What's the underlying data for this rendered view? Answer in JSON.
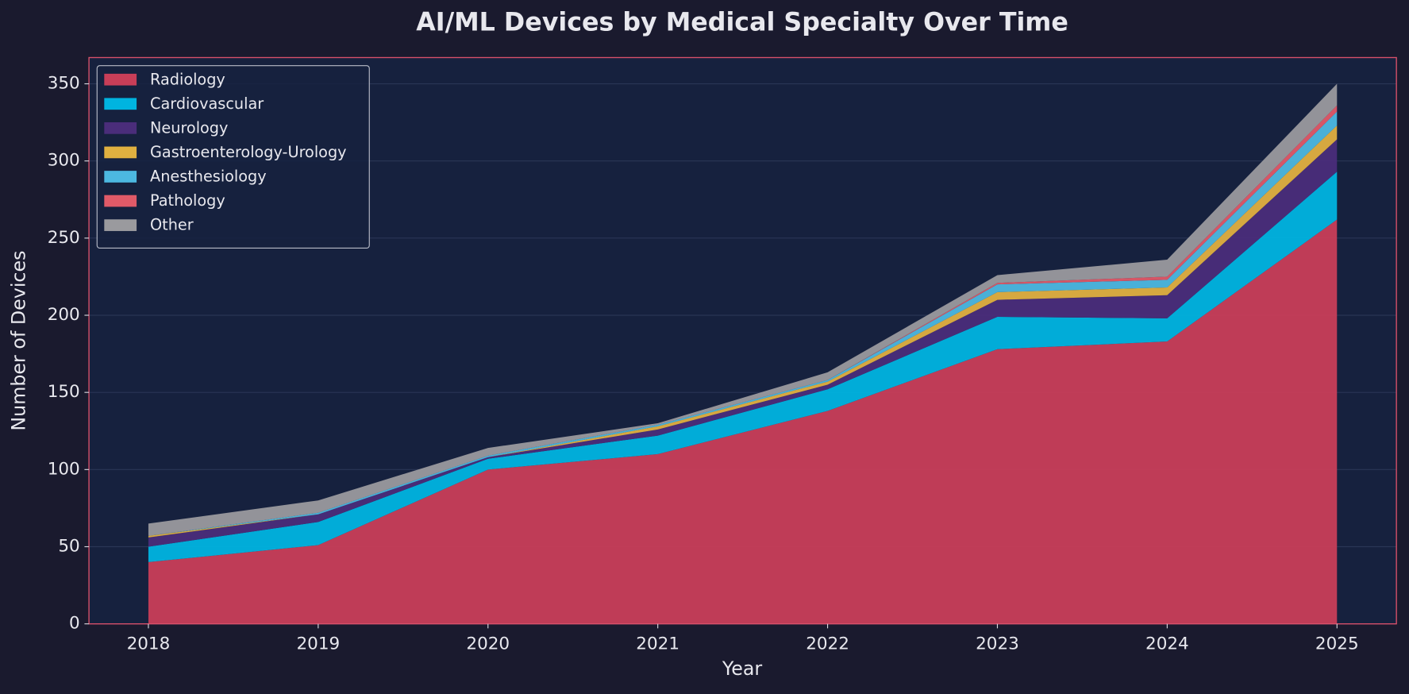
{
  "chart_data": {
    "type": "stackedarea",
    "title": "AI/ML Devices by Medical Specialty Over Time",
    "xlabel": "Year",
    "ylabel": "Number of Devices",
    "x": [
      2018,
      2019,
      2020,
      2021,
      2022,
      2023,
      2024,
      2025
    ],
    "series": [
      {
        "name": "Radiology",
        "color": "#c83e58",
        "values": [
          40,
          51,
          100,
          110,
          138,
          178,
          183,
          262
        ]
      },
      {
        "name": "Cardiovascular",
        "color": "#00b4e0",
        "values": [
          10,
          15,
          7,
          12,
          14,
          21,
          15,
          31
        ]
      },
      {
        "name": "Neurology",
        "color": "#4a2d7a",
        "values": [
          6,
          5,
          1,
          4,
          3,
          11,
          15,
          21
        ]
      },
      {
        "name": "Gastroenterology-Urology",
        "color": "#e0b040",
        "values": [
          1,
          0,
          0,
          2,
          2,
          5,
          5,
          9
        ]
      },
      {
        "name": "Anesthesiology",
        "color": "#4cb8e0",
        "values": [
          0,
          1,
          1,
          1,
          1,
          5,
          5,
          9
        ]
      },
      {
        "name": "Pathology",
        "color": "#e05a68",
        "values": [
          0,
          0,
          0,
          0,
          0,
          1,
          2,
          4
        ]
      },
      {
        "name": "Other",
        "color": "#9a9a9e",
        "values": [
          8,
          8,
          5,
          1,
          5,
          5,
          11,
          14
        ]
      }
    ],
    "xlim": [
      2017.65,
      2025.35
    ],
    "xticks": [
      2018,
      2019,
      2020,
      2021,
      2022,
      2023,
      2024,
      2025
    ],
    "ylim": [
      0,
      367
    ],
    "yticks": [
      0,
      50,
      100,
      150,
      200,
      250,
      300,
      350
    ],
    "grid": true,
    "legend": "upper-left"
  }
}
